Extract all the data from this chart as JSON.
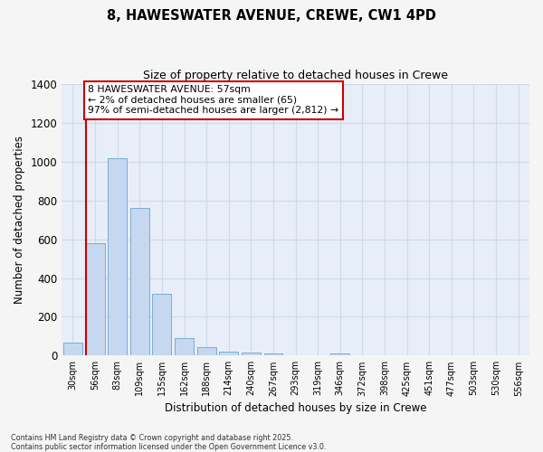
{
  "title_line1": "8, HAWESWATER AVENUE, CREWE, CW1 4PD",
  "title_line2": "Size of property relative to detached houses in Crewe",
  "xlabel": "Distribution of detached houses by size in Crewe",
  "ylabel": "Number of detached properties",
  "categories": [
    "30sqm",
    "56sqm",
    "83sqm",
    "109sqm",
    "135sqm",
    "162sqm",
    "188sqm",
    "214sqm",
    "240sqm",
    "267sqm",
    "293sqm",
    "319sqm",
    "346sqm",
    "372sqm",
    "398sqm",
    "425sqm",
    "451sqm",
    "477sqm",
    "503sqm",
    "530sqm",
    "556sqm"
  ],
  "values": [
    65,
    580,
    1020,
    760,
    320,
    90,
    45,
    22,
    15,
    10,
    0,
    0,
    10,
    0,
    0,
    0,
    0,
    0,
    0,
    0,
    0
  ],
  "bar_color": "#c5d8f0",
  "bar_edge_color": "#7aadd4",
  "annotation_text": "8 HAWESWATER AVENUE: 57sqm\n← 2% of detached houses are smaller (65)\n97% of semi-detached houses are larger (2,812) →",
  "annotation_box_edgecolor": "#cc0000",
  "vline_color": "#cc0000",
  "ylim_max": 1400,
  "yticks": [
    0,
    200,
    400,
    600,
    800,
    1000,
    1200,
    1400
  ],
  "plot_bg_color": "#e8eef8",
  "fig_bg_color": "#f5f5f5",
  "grid_color": "#d0d8e8",
  "footer_text": "Contains HM Land Registry data © Crown copyright and database right 2025.\nContains public sector information licensed under the Open Government Licence v3.0."
}
